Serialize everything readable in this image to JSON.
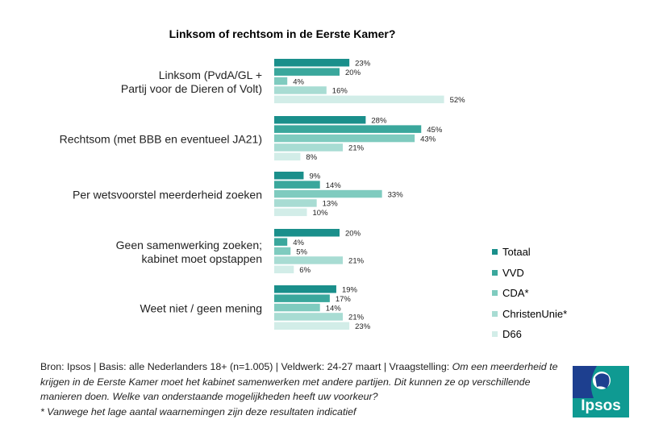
{
  "chart_data": {
    "type": "bar",
    "orientation": "horizontal",
    "title": "Linksom of rechtsom in de Eerste Kamer?",
    "categories": [
      [
        "Linksom (PvdA/GL +",
        "Partij voor de Dieren of Volt)"
      ],
      [
        "Rechtsom (met BBB en eventueel JA21)"
      ],
      [
        "Per wetsvoorstel meerderheid zoeken"
      ],
      [
        "Geen samenwerking zoeken;",
        "kabinet moet opstappen"
      ],
      [
        "Weet niet / geen mening"
      ]
    ],
    "series": [
      {
        "name": "Totaal",
        "color": "#1a8f8b",
        "values": [
          23,
          28,
          9,
          20,
          19
        ]
      },
      {
        "name": "VVD",
        "color": "#3aa79c",
        "values": [
          20,
          45,
          14,
          4,
          17
        ]
      },
      {
        "name": "CDA*",
        "color": "#7fcbbf",
        "values": [
          4,
          43,
          33,
          5,
          14
        ]
      },
      {
        "name": "ChristenUnie*",
        "color": "#a8dcd3",
        "values": [
          16,
          21,
          13,
          21,
          21
        ]
      },
      {
        "name": "D66",
        "color": "#d2ede8",
        "values": [
          52,
          8,
          10,
          6,
          23
        ]
      }
    ],
    "value_suffix": "%",
    "legend_position": "right",
    "grid": false
  },
  "footnote": {
    "source": "Bron: Ipsos | Basis: alle Nederlanders 18+ (n=1.005) | Veldwerk: 24-27 maart | Vraagstelling: ",
    "question": "Om een meerderheid te krijgen in de Eerste Kamer moet het kabinet samenwerken met andere partijen. Dit kunnen ze op verschillende manieren doen. Welke van onderstaande mogelijkheden heeft uw voorkeur?",
    "note": "* Vanwege het lage aantal waarnemingen zijn deze resultaten indicatief"
  },
  "logo": {
    "text": "Ipsos",
    "color": "#0d9c94"
  }
}
